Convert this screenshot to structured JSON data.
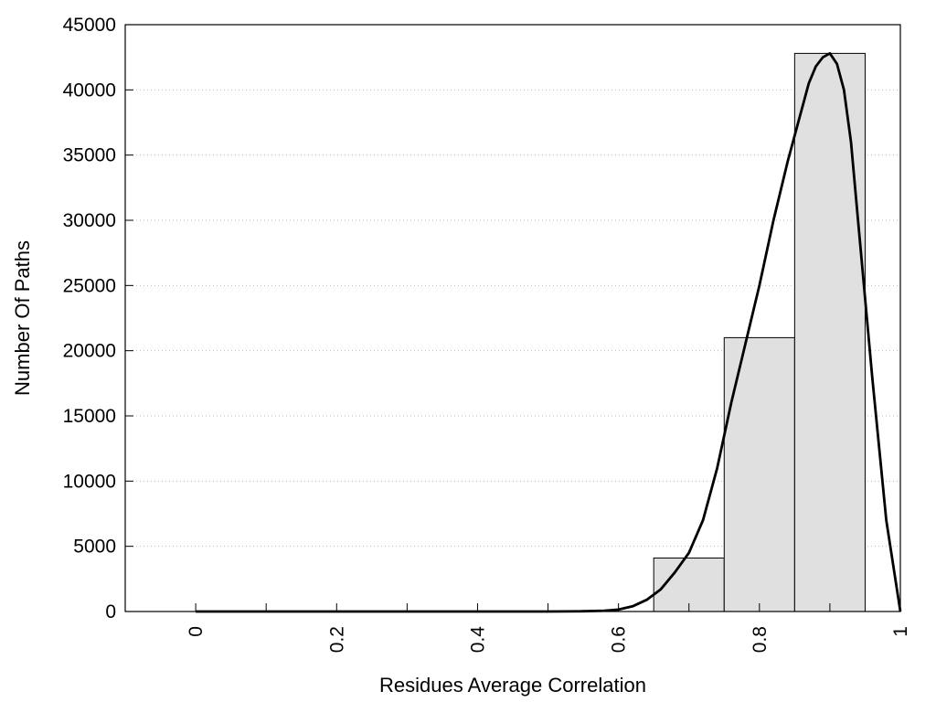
{
  "chart_data": {
    "type": "bar",
    "title": "",
    "xlabel": "Residues Average Correlation",
    "ylabel": "Number Of Paths",
    "xlim": [
      -0.1,
      1.0
    ],
    "ylim": [
      0,
      45000
    ],
    "x_ticks": [
      0,
      0.2,
      0.4,
      0.6,
      0.8,
      1
    ],
    "x_tick_labels": [
      "0",
      "0.2",
      "0.4",
      "0.6",
      "0.8",
      "1"
    ],
    "x_minor_ticks": [
      0.1,
      0.3,
      0.5,
      0.7,
      0.9
    ],
    "y_ticks": [
      0,
      5000,
      10000,
      15000,
      20000,
      25000,
      30000,
      35000,
      40000,
      45000
    ],
    "y_tick_labels": [
      "0",
      "5000",
      "10000",
      "15000",
      "20000",
      "25000",
      "30000",
      "35000",
      "40000",
      "45000"
    ],
    "grid": "horizontal dotted",
    "legend": "none",
    "bins": [
      {
        "x0": 0.65,
        "x1": 0.75,
        "value": 4100
      },
      {
        "x0": 0.75,
        "x1": 0.85,
        "value": 21000
      },
      {
        "x0": 0.85,
        "x1": 0.95,
        "value": 42800
      }
    ],
    "curve": {
      "x": [
        0,
        0.1,
        0.2,
        0.3,
        0.4,
        0.5,
        0.55,
        0.58,
        0.6,
        0.62,
        0.64,
        0.66,
        0.68,
        0.7,
        0.72,
        0.74,
        0.76,
        0.78,
        0.8,
        0.82,
        0.84,
        0.86,
        0.87,
        0.88,
        0.89,
        0.9,
        0.91,
        0.92,
        0.93,
        0.94,
        0.96,
        0.98,
        1.0
      ],
      "y": [
        0,
        0,
        0,
        0,
        0,
        0,
        20,
        60,
        150,
        400,
        900,
        1700,
        3000,
        4500,
        7000,
        11000,
        16000,
        20500,
        25000,
        30000,
        34500,
        38500,
        40500,
        41800,
        42500,
        42800,
        42000,
        40000,
        36000,
        30000,
        18000,
        7000,
        0
      ]
    },
    "colors": {
      "bar_fill": "#e0e0e0",
      "line": "#000000",
      "grid": "#bdbdbd"
    }
  }
}
